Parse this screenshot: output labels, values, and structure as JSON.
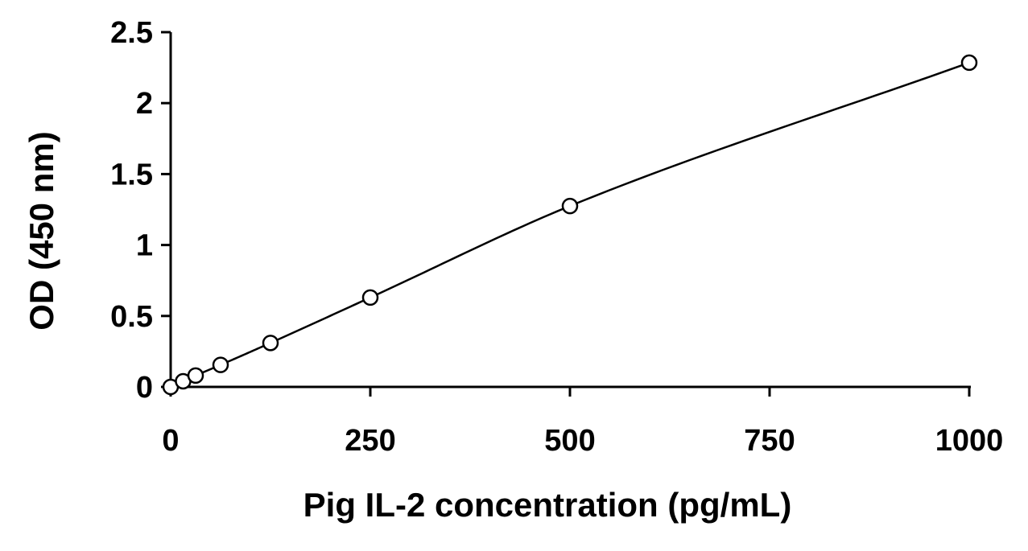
{
  "chart_data": {
    "type": "scatter",
    "title": "",
    "xlabel": "Pig IL-2 concentration (pg/mL)",
    "ylabel": "OD (450 nm)",
    "xlim": [
      0,
      1000
    ],
    "ylim": [
      0,
      2.5
    ],
    "x_ticks": [
      0,
      250,
      500,
      750,
      1000
    ],
    "x_tick_labels": [
      "0",
      "250",
      "500",
      "750",
      "1000"
    ],
    "y_ticks": [
      0,
      0.5,
      1,
      1.5,
      2,
      2.5
    ],
    "y_tick_labels": [
      "0",
      "0.5",
      "1",
      "1.5",
      "2",
      "2.5"
    ],
    "grid": false,
    "legend": "none",
    "colors": {
      "axis": "#000000",
      "marker_stroke": "#000000",
      "marker_fill": "#ffffff",
      "fit_line": "#000000"
    },
    "series": [
      {
        "x": [
          0,
          15.6,
          31.25,
          62.5,
          125,
          250,
          500,
          1000
        ],
        "y": [
          0.0,
          0.04,
          0.08,
          0.155,
          0.31,
          0.63,
          1.275,
          2.285
        ],
        "marker": "open-circle",
        "fit": "smooth-curve"
      }
    ]
  }
}
